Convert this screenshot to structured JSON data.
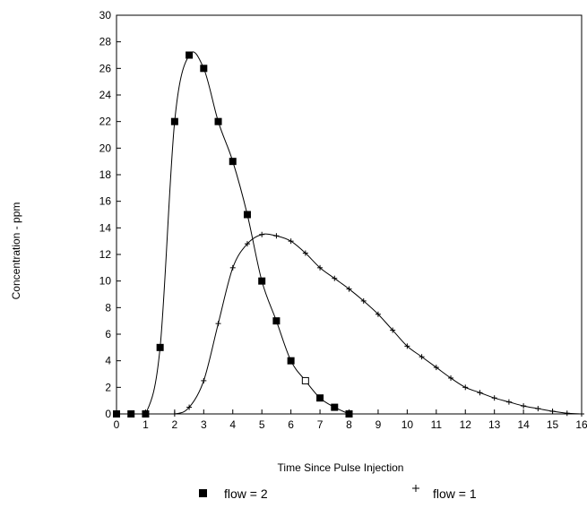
{
  "chart_data": {
    "type": "line",
    "xlabel": "Time Since Pulse Injection",
    "ylabel": "Concentration - ppm",
    "xlim": [
      0,
      16
    ],
    "ylim": [
      0,
      30
    ],
    "xticks": [
      0,
      1,
      2,
      3,
      4,
      5,
      6,
      7,
      8,
      9,
      10,
      11,
      12,
      13,
      14,
      15,
      16
    ],
    "yticks": [
      0,
      2,
      4,
      6,
      8,
      10,
      12,
      14,
      16,
      18,
      20,
      22,
      24,
      26,
      28,
      30
    ],
    "grid": false,
    "legend_position": "bottom",
    "series": [
      {
        "name": "flow = 2",
        "marker": "square",
        "color": "#000000",
        "x": [
          0,
          0.5,
          1,
          1.5,
          2,
          2.5,
          3,
          3.5,
          4,
          4.5,
          5,
          5.5,
          6,
          6.5,
          7,
          7.5,
          8
        ],
        "y": [
          0,
          0,
          0,
          5,
          22,
          27,
          26,
          22,
          19,
          15,
          10,
          7,
          4,
          2.5,
          1.2,
          0.5,
          0
        ]
      },
      {
        "name": "flow = 1",
        "marker": "plus",
        "color": "#000000",
        "x": [
          0,
          1,
          2,
          2.5,
          3,
          3.5,
          4,
          4.5,
          5,
          5.5,
          6,
          6.5,
          7,
          7.5,
          8,
          8.5,
          9,
          9.5,
          10,
          10.5,
          11,
          11.5,
          12,
          12.5,
          13,
          13.5,
          14,
          14.5,
          15,
          15.5,
          16
        ],
        "y": [
          0,
          0,
          0,
          0.5,
          2.5,
          6.8,
          11,
          12.8,
          13.5,
          13.4,
          13,
          12.1,
          11,
          10.2,
          9.4,
          8.5,
          7.5,
          6.3,
          5.1,
          4.3,
          3.5,
          2.7,
          2.0,
          1.6,
          1.2,
          0.9,
          0.6,
          0.4,
          0.2,
          0.05,
          0
        ]
      }
    ]
  }
}
